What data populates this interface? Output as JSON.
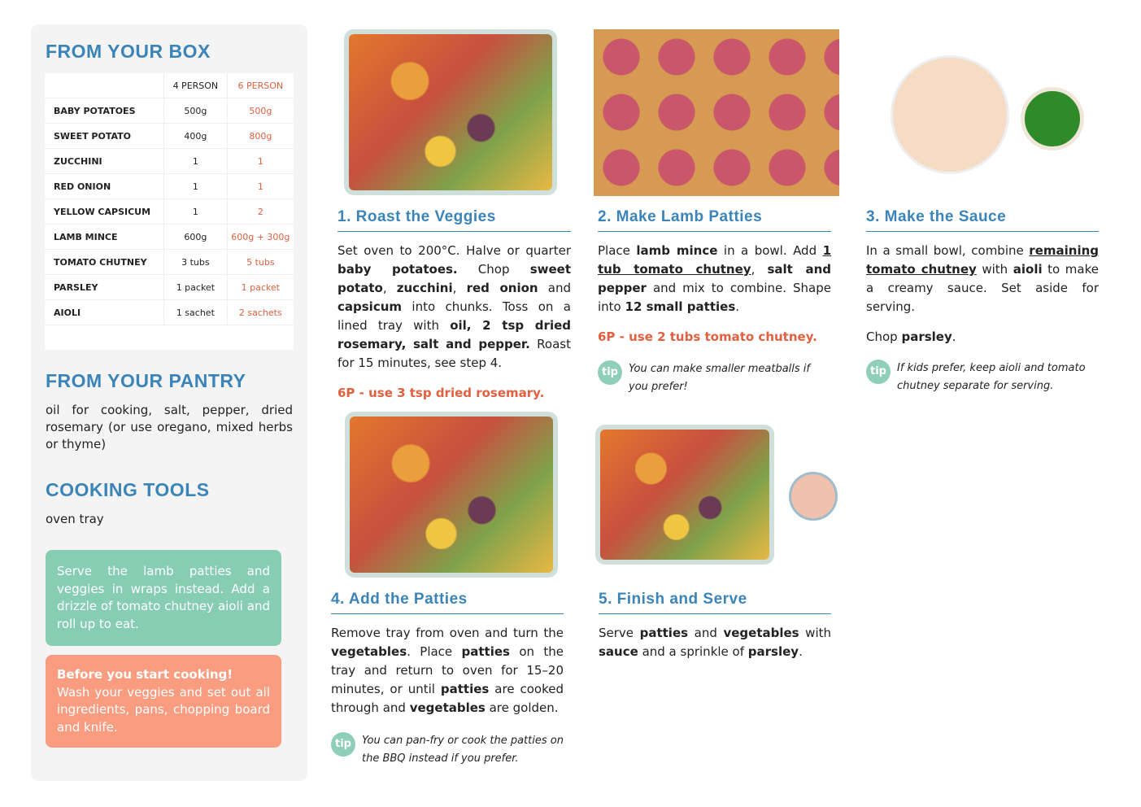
{
  "sidebar": {
    "box_title": "FROM YOUR BOX",
    "table": {
      "header": [
        "4 PERSON",
        "6 PERSON"
      ],
      "rows": [
        [
          "BABY POTATOES",
          "500g",
          "500g"
        ],
        [
          "SWEET POTATO",
          "400g",
          "800g"
        ],
        [
          "ZUCCHINI",
          "1",
          "1"
        ],
        [
          "RED ONION",
          "1",
          "1"
        ],
        [
          "YELLOW CAPSICUM",
          "1",
          "2"
        ],
        [
          "LAMB MINCE",
          "600g",
          "600g + 300g"
        ],
        [
          "TOMATO CHUTNEY",
          "3 tubs",
          "5 tubs"
        ],
        [
          "PARSLEY",
          "1 packet",
          "1 packet"
        ],
        [
          "AIOLI",
          "1 sachet",
          "2 sachets"
        ]
      ]
    },
    "pantry_title": "FROM YOUR PANTRY",
    "pantry_text": "oil for cooking, salt, pepper, dried rosemary (or use oregano, mixed herbs or thyme)",
    "tools_title": "COOKING TOOLS",
    "tools_text": "oven tray",
    "green_note": "Serve the lamb patties and veggies in wraps instead. Add a drizzle of tomato chutney aioli and roll up to eat.",
    "orange_note": {
      "heading": "Before you start cooking!",
      "text": "Wash your veggies and set out all ingredients, pans, chopping board and knife."
    }
  },
  "tip_label": "tip",
  "steps": [
    {
      "title": "1. Roast the Veggies",
      "body": [
        [
          "Set oven to 200°C. Halve or quarter ",
          "baby potatoes.",
          " Chop ",
          "sweet potato",
          ", ",
          "zucchini",
          ", ",
          "red onion",
          " and ",
          "capsicum",
          " into chunks. Toss on a lined tray with ",
          "oil, 2 tsp dried rosemary, salt and pepper.",
          " Roast for 15 minutes, see step 4."
        ]
      ],
      "note": "6P - use 3 tsp dried rosemary."
    },
    {
      "title": "2. Make Lamb Patties",
      "body": [
        [
          "Place ",
          "lamb mince",
          " in a bowl. Add ",
          "1 tub tomato chutney",
          ", ",
          "salt and pepper",
          " and mix to combine. Shape into ",
          "12 small patties",
          "."
        ]
      ],
      "note": "6P - use 2 tubs tomato chutney.",
      "tip": "You can make smaller meatballs if you prefer!"
    },
    {
      "title": "3. Make the Sauce",
      "body": [
        [
          "In a small bowl, combine ",
          "remaining tomato chutney",
          " with ",
          "aioli",
          " to make a creamy sauce. Set aside for serving."
        ],
        [
          "Chop ",
          "parsley",
          "."
        ]
      ],
      "tip": "If kids prefer, keep aioli and tomato chutney separate for serving."
    },
    {
      "title": "4. Add the Patties",
      "body": [
        [
          "Remove tray from oven and turn the ",
          "vegetables",
          ". Place ",
          "patties",
          " on the tray and return to oven for 15–20 minutes, or until ",
          "patties",
          " are cooked through and ",
          "vegetables",
          " are golden."
        ]
      ],
      "tip": "You can pan-fry or cook the patties on the BBQ instead if you prefer."
    },
    {
      "title": "5. Finish and Serve",
      "body": [
        [
          "Serve ",
          "patties",
          " and ",
          "vegetables",
          " with ",
          "sauce",
          " and a sprinkle of ",
          "parsley",
          "."
        ]
      ]
    }
  ]
}
